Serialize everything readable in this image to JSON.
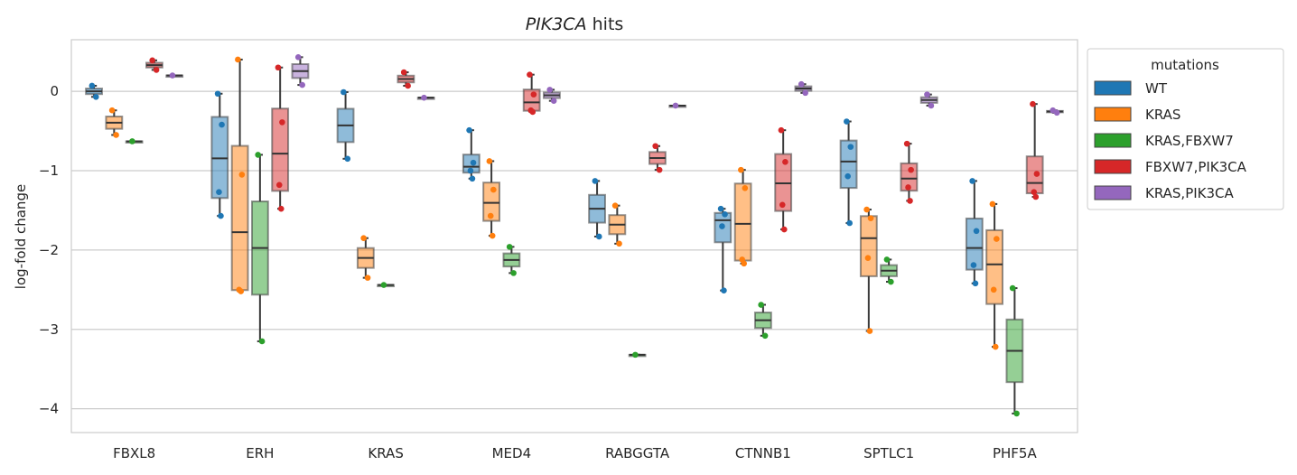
{
  "chart_data": {
    "type": "box",
    "title_italic": "PIK3CA",
    "title_rest": " hits",
    "xlabel": "",
    "ylabel": "log-fold change",
    "ylim": [
      -4.3,
      0.65
    ],
    "yticks": [
      0,
      -1,
      -2,
      -3,
      -4
    ],
    "ytick_labels": [
      "0",
      "−1",
      "−2",
      "−3",
      "−4"
    ],
    "grid": "horizontal",
    "legend": {
      "title": "mutations",
      "placement": "outside-top-right",
      "entries": [
        {
          "name": "WT",
          "color": "#1f77b4"
        },
        {
          "name": "KRAS",
          "color": "#ff7f0e"
        },
        {
          "name": "KRAS,FBXW7",
          "color": "#2ca02c"
        },
        {
          "name": "FBXW7,PIK3CA",
          "color": "#d62728"
        },
        {
          "name": "KRAS,PIK3CA",
          "color": "#9467bd"
        }
      ]
    },
    "categories": [
      "FBXL8",
      "ERH",
      "KRAS",
      "MED4",
      "RABGGTA",
      "CTNNB1",
      "SPTLC1",
      "PHF5A"
    ],
    "series": [
      {
        "name": "WT",
        "groups": [
          {
            "points": [
              0.07,
              -0.07
            ]
          },
          {
            "points": [
              -0.03,
              -0.42,
              -1.27,
              -1.57
            ]
          },
          {
            "points": [
              -0.01,
              -0.85
            ]
          },
          {
            "points": [
              -0.49,
              -0.9,
              -1.0,
              -1.1
            ]
          },
          {
            "points": [
              -1.13,
              -1.83
            ]
          },
          {
            "points": [
              -1.48,
              -1.55,
              -1.7,
              -2.51
            ]
          },
          {
            "points": [
              -0.38,
              -0.7,
              -1.07,
              -1.66
            ]
          },
          {
            "points": [
              -1.13,
              -1.76,
              -2.19,
              -2.42
            ]
          }
        ]
      },
      {
        "name": "KRAS",
        "groups": [
          {
            "points": [
              -0.24,
              -0.55
            ]
          },
          {
            "points": [
              0.4,
              -1.05,
              -2.5,
              -2.52
            ]
          },
          {
            "points": [
              -1.85,
              -2.35
            ]
          },
          {
            "points": [
              -0.88,
              -1.24,
              -1.57,
              -1.82
            ]
          },
          {
            "points": [
              -1.44,
              -1.92
            ]
          },
          {
            "points": [
              -0.99,
              -1.22,
              -2.12,
              -2.17
            ]
          },
          {
            "points": [
              -1.49,
              -1.6,
              -2.1,
              -3.02
            ]
          },
          {
            "points": [
              -1.42,
              -1.86,
              -2.5,
              -3.22
            ]
          }
        ]
      },
      {
        "name": "KRAS,FBXW7",
        "groups": [
          {
            "points": [
              -0.63
            ]
          },
          {
            "points": [
              -0.8,
              -3.15
            ]
          },
          {
            "points": [
              -2.44
            ]
          },
          {
            "points": [
              -1.96,
              -2.29
            ]
          },
          {
            "points": [
              -3.32
            ]
          },
          {
            "points": [
              -2.69,
              -3.08
            ]
          },
          {
            "points": [
              -2.12,
              -2.4
            ]
          },
          {
            "points": [
              -2.48,
              -4.06
            ]
          }
        ]
      },
      {
        "name": "FBXW7,PIK3CA",
        "groups": [
          {
            "points": [
              0.39,
              0.27
            ]
          },
          {
            "points": [
              0.3,
              -0.39,
              -1.18,
              -1.48
            ]
          },
          {
            "points": [
              0.24,
              0.07
            ]
          },
          {
            "points": [
              0.21,
              -0.04,
              -0.24,
              -0.26
            ]
          },
          {
            "points": [
              -0.69,
              -0.99
            ]
          },
          {
            "points": [
              -0.49,
              -0.89,
              -1.43,
              -1.74
            ]
          },
          {
            "points": [
              -0.66,
              -0.99,
              -1.21,
              -1.38
            ]
          },
          {
            "points": [
              -0.16,
              -1.04,
              -1.27,
              -1.33
            ]
          }
        ]
      },
      {
        "name": "KRAS,PIK3CA",
        "groups": [
          {
            "points": [
              0.2
            ]
          },
          {
            "points": [
              0.43,
              0.08
            ]
          },
          {
            "points": [
              -0.08
            ]
          },
          {
            "points": [
              0.02,
              -0.12
            ]
          },
          {
            "points": [
              -0.18
            ]
          },
          {
            "points": [
              0.09,
              -0.02
            ]
          },
          {
            "points": [
              -0.04,
              -0.18
            ]
          },
          {
            "points": [
              -0.24,
              -0.27
            ]
          }
        ]
      }
    ]
  }
}
